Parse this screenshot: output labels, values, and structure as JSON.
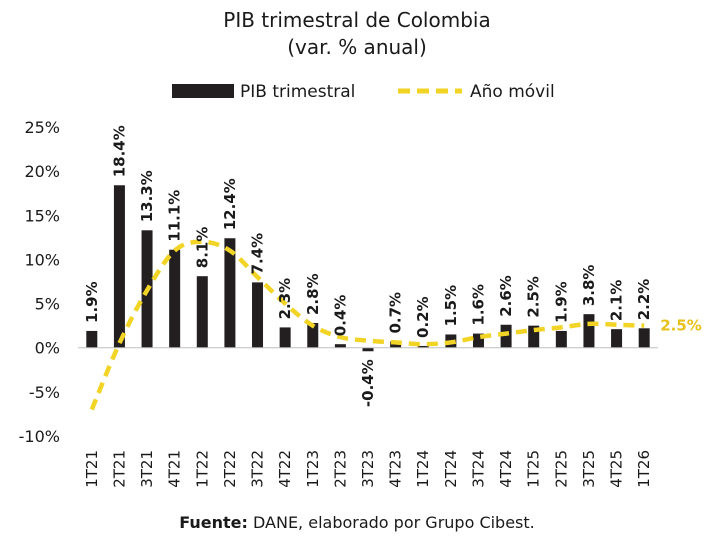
{
  "chart_data": {
    "type": "bar",
    "title": "PIB trimestral de Colombia",
    "subtitle": "(var. % anual)",
    "categories": [
      "1T21",
      "2T21",
      "3T21",
      "4T21",
      "1T22",
      "2T22",
      "3T22",
      "4T22",
      "1T23",
      "2T23",
      "3T23",
      "4T23",
      "1T24",
      "2T24",
      "3T24",
      "4T24",
      "1T25",
      "2T25",
      "3T25",
      "4T25",
      "1T26"
    ],
    "series": [
      {
        "name": "PIB trimestral",
        "type": "bar",
        "color": "#231f20",
        "values": [
          1.9,
          18.4,
          13.3,
          11.1,
          8.1,
          12.4,
          7.4,
          2.3,
          2.8,
          0.4,
          -0.4,
          0.7,
          0.2,
          1.5,
          1.6,
          2.6,
          2.5,
          1.9,
          3.8,
          2.1,
          2.2
        ],
        "labels": [
          "1.9%",
          "18.4%",
          "13.3%",
          "11.1%",
          "8.1%",
          "12.4%",
          "7.4%",
          "2.3%",
          "2.8%",
          "0.4%",
          "-0.4%",
          "0.7%",
          "0.2%",
          "1.5%",
          "1.6%",
          "2.6%",
          "2.5%",
          "1.9%",
          "3.8%",
          "2.1%",
          "2.2%"
        ]
      },
      {
        "name": "Año móvil",
        "type": "line",
        "style": "dashed",
        "color": "#f2d426",
        "values": [
          -7.0,
          0.5,
          6.5,
          11.0,
          12.0,
          11.0,
          8.0,
          5.0,
          2.5,
          1.2,
          0.8,
          0.6,
          0.4,
          0.6,
          1.2,
          1.6,
          2.0,
          2.3,
          2.7,
          2.6,
          2.5
        ]
      }
    ],
    "end_label": "2.5%",
    "ylim": [
      -10,
      25
    ],
    "yticks": [
      -10,
      -5,
      0,
      5,
      10,
      15,
      20,
      25
    ],
    "ytick_labels": [
      "-10%",
      "-5%",
      "0%",
      "5%",
      "10%",
      "15%",
      "20%",
      "25%"
    ],
    "grid": false,
    "legend_position": "top"
  },
  "source": {
    "label": "Fuente:",
    "text": " DANE, elaborado por Grupo Cibest."
  }
}
